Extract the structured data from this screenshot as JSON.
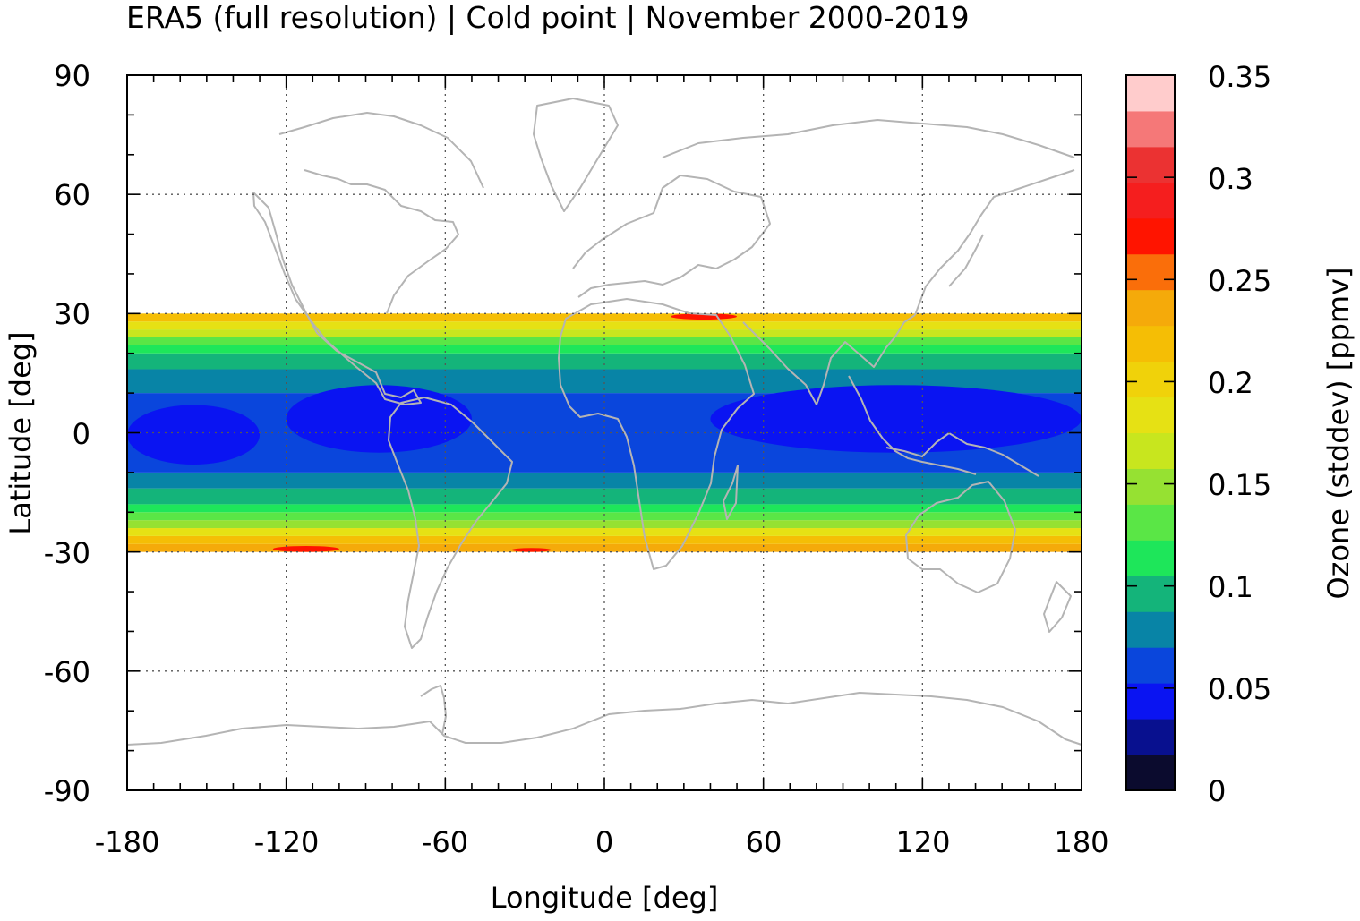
{
  "chart_data": {
    "type": "heatmap",
    "title": "ERA5 (full resolution) | Cold point | November 2000-2019",
    "xlabel": "Longitude [deg]",
    "ylabel": "Latitude [deg]",
    "colorbar_label": "Ozone (stddev) [ppmv]",
    "xlim": [
      -180,
      180
    ],
    "ylim": [
      -90,
      90
    ],
    "x_ticks": [
      "-180",
      "-120",
      "-60",
      "0",
      "60",
      "120",
      "180"
    ],
    "y_ticks": [
      "90",
      "60",
      "30",
      "0",
      "-30",
      "-60",
      "-90"
    ],
    "colorbar_ticks": [
      "0",
      "0.05",
      "0.1",
      "0.15",
      "0.2",
      "0.25",
      "0.3",
      "0.35"
    ],
    "colorbar_range": [
      0,
      0.35
    ],
    "data_lat_range": [
      -30,
      30
    ],
    "grid": "dotted",
    "colorbar_levels": [
      {
        "from": 0.0,
        "to": 0.0175,
        "color": "#0b0b2e"
      },
      {
        "from": 0.0175,
        "to": 0.035,
        "color": "#08108f"
      },
      {
        "from": 0.035,
        "to": 0.0525,
        "color": "#0a14f2"
      },
      {
        "from": 0.0525,
        "to": 0.07,
        "color": "#0a46dc"
      },
      {
        "from": 0.07,
        "to": 0.0875,
        "color": "#0884a6"
      },
      {
        "from": 0.0875,
        "to": 0.105,
        "color": "#14b47a"
      },
      {
        "from": 0.105,
        "to": 0.1225,
        "color": "#1ee65a"
      },
      {
        "from": 0.1225,
        "to": 0.14,
        "color": "#5ae646"
      },
      {
        "from": 0.14,
        "to": 0.1575,
        "color": "#96e132"
      },
      {
        "from": 0.1575,
        "to": 0.175,
        "color": "#c8e61e"
      },
      {
        "from": 0.175,
        "to": 0.1925,
        "color": "#e6e114"
      },
      {
        "from": 0.1925,
        "to": 0.21,
        "color": "#f0d20a"
      },
      {
        "from": 0.21,
        "to": 0.2275,
        "color": "#f5be05"
      },
      {
        "from": 0.2275,
        "to": 0.245,
        "color": "#f5aa0a"
      },
      {
        "from": 0.245,
        "to": 0.2625,
        "color": "#fa6e0a"
      },
      {
        "from": 0.2625,
        "to": 0.28,
        "color": "#ff1400"
      },
      {
        "from": 0.28,
        "to": 0.2975,
        "color": "#f51e1e"
      },
      {
        "from": 0.2975,
        "to": 0.315,
        "color": "#eb3232"
      },
      {
        "from": 0.315,
        "to": 0.3325,
        "color": "#f57878"
      },
      {
        "from": 0.3325,
        "to": 0.35,
        "color": "#ffcccc"
      }
    ],
    "field_bands": [
      {
        "lat_from": -30,
        "lat_to": -28,
        "value": 0.24
      },
      {
        "lat_from": -28,
        "lat_to": -26,
        "value": 0.21
      },
      {
        "lat_from": -26,
        "lat_to": -24,
        "value": 0.18
      },
      {
        "lat_from": -24,
        "lat_to": -22,
        "value": 0.15
      },
      {
        "lat_from": -22,
        "lat_to": -20,
        "value": 0.13
      },
      {
        "lat_from": -20,
        "lat_to": -18,
        "value": 0.11
      },
      {
        "lat_from": -18,
        "lat_to": -14,
        "value": 0.09
      },
      {
        "lat_from": -14,
        "lat_to": -10,
        "value": 0.075
      },
      {
        "lat_from": -10,
        "lat_to": 10,
        "value": 0.06
      },
      {
        "lat_from": 10,
        "lat_to": 16,
        "value": 0.075
      },
      {
        "lat_from": 16,
        "lat_to": 20,
        "value": 0.09
      },
      {
        "lat_from": 20,
        "lat_to": 22,
        "value": 0.11
      },
      {
        "lat_from": 22,
        "lat_to": 24,
        "value": 0.13
      },
      {
        "lat_from": 24,
        "lat_to": 26,
        "value": 0.16
      },
      {
        "lat_from": 26,
        "lat_to": 28,
        "value": 0.19
      },
      {
        "lat_from": 28,
        "lat_to": 30,
        "value": 0.22
      }
    ],
    "field_minima": [
      {
        "lon_from": -180,
        "lon_to": -130,
        "lat_from": -8,
        "lat_to": 7,
        "value": 0.045
      },
      {
        "lon_from": -120,
        "lon_to": -50,
        "lat_from": -5,
        "lat_to": 12,
        "value": 0.045
      },
      {
        "lon_from": 40,
        "lon_to": 180,
        "lat_from": -5,
        "lat_to": 12,
        "value": 0.045
      }
    ],
    "field_maxima": [
      {
        "lon_from": -125,
        "lon_to": -100,
        "lat_from": -30,
        "lat_to": -28.5,
        "value": 0.27
      },
      {
        "lon_from": 25,
        "lon_to": 50,
        "lat_from": 28.5,
        "lat_to": 30,
        "value": 0.27
      },
      {
        "lon_from": -35,
        "lon_to": -20,
        "lat_from": -30,
        "lat_to": -29,
        "value": 0.265
      }
    ]
  }
}
